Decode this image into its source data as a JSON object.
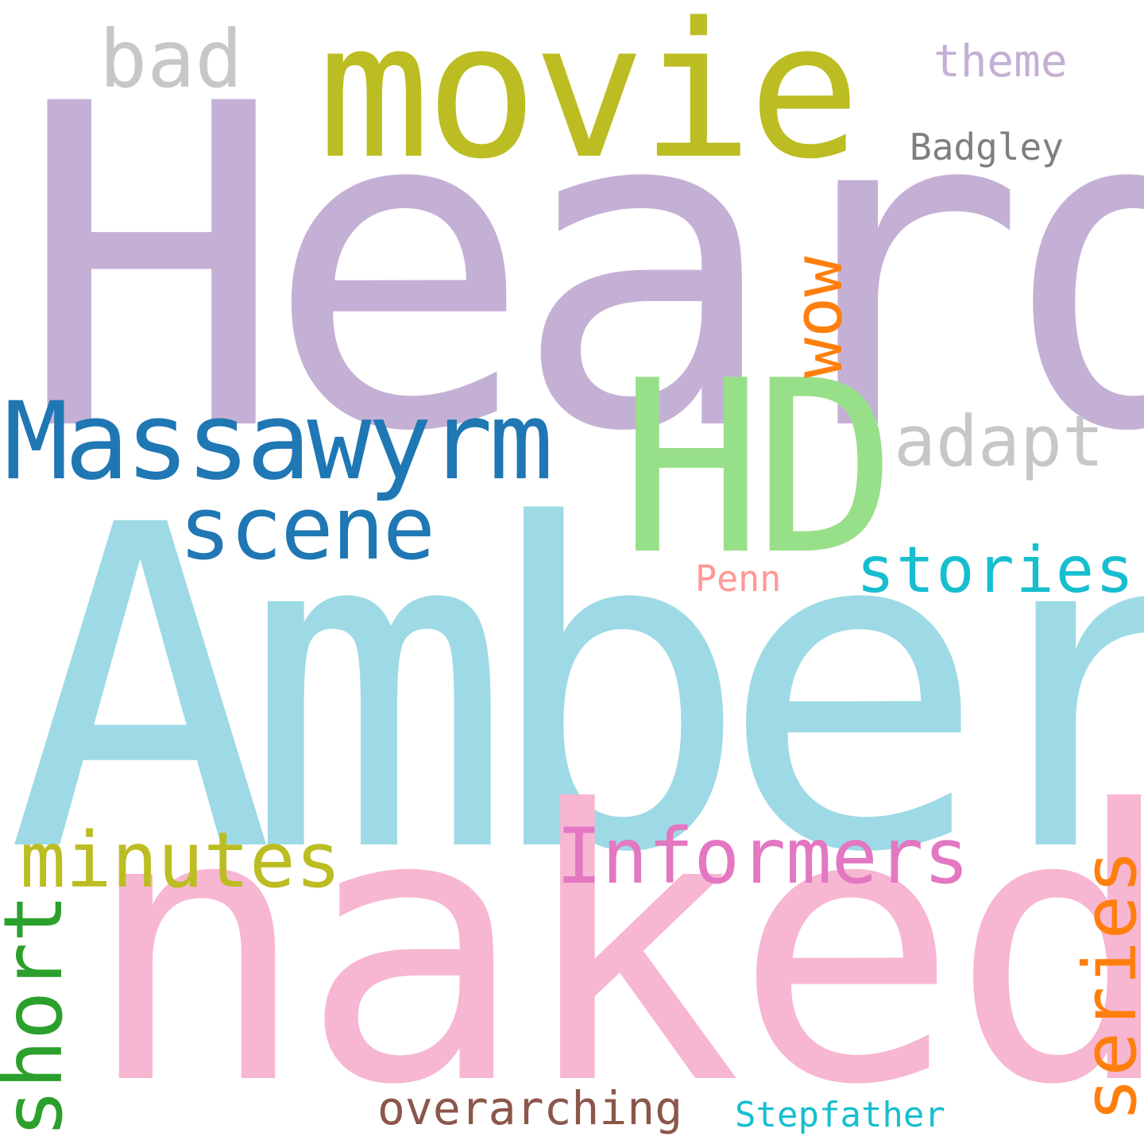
{
  "cloud": {
    "words": {
      "heard": {
        "text": "Heard",
        "color": "#c5b0d5"
      },
      "amber": {
        "text": "Amber",
        "color": "#9edae5"
      },
      "naked": {
        "text": "naked",
        "color": "#f7b6d2"
      },
      "movie": {
        "text": "movie",
        "color": "#bcbd22"
      },
      "hd": {
        "text": "HD",
        "color": "#98df8a"
      },
      "massawyrm": {
        "text": "Massawyrm",
        "color": "#1f77b4"
      },
      "scene": {
        "text": "scene",
        "color": "#1f77b4"
      },
      "bad": {
        "text": "bad",
        "color": "#c7c7c7"
      },
      "theme": {
        "text": "theme",
        "color": "#c5b0d5"
      },
      "badgley": {
        "text": "Badgley",
        "color": "#7f7f7f"
      },
      "wow": {
        "text": "wow",
        "color": "#ff7f0e"
      },
      "adapt": {
        "text": "adapt",
        "color": "#c7c7c7"
      },
      "stories": {
        "text": "stories",
        "color": "#17becf"
      },
      "penn": {
        "text": "Penn",
        "color": "#ff9896"
      },
      "minutes": {
        "text": "minutes",
        "color": "#bcbd22"
      },
      "informers": {
        "text": "Informers",
        "color": "#e377c2"
      },
      "series": {
        "text": "series",
        "color": "#ff7f0e"
      },
      "short": {
        "text": "short",
        "color": "#2ca02c"
      },
      "overarching": {
        "text": "overarching",
        "color": "#8c564b"
      },
      "stepfather": {
        "text": "Stepfather",
        "color": "#17becf"
      }
    }
  }
}
